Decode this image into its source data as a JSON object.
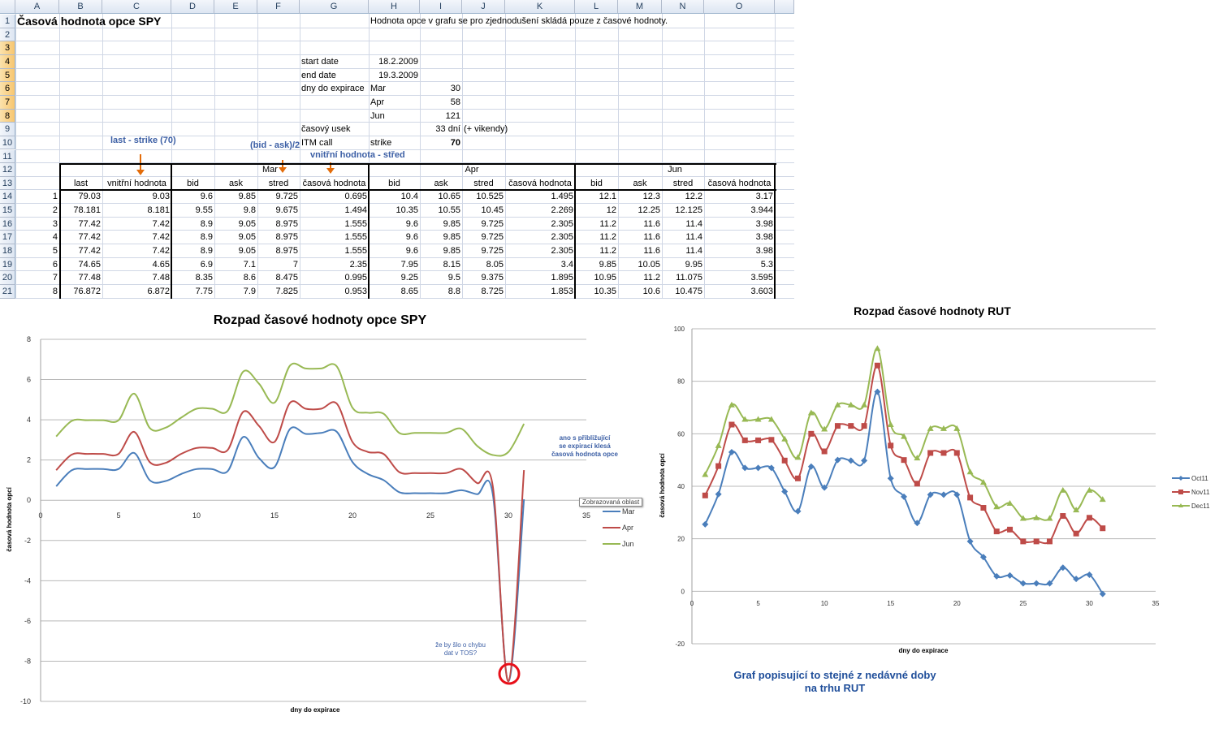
{
  "sheet": {
    "columns": [
      "A",
      "B",
      "C",
      "D",
      "E",
      "F",
      "G",
      "H",
      "I",
      "J",
      "K",
      "L",
      "M",
      "N",
      "O"
    ],
    "rows": [
      1,
      2,
      3,
      4,
      5,
      6,
      7,
      8,
      9,
      10,
      11,
      12,
      13,
      14,
      15,
      16,
      17,
      18,
      19,
      20,
      21
    ],
    "cells": [
      {
        "ref": "A1",
        "text": "Časová hodnota opce SPY"
      },
      {
        "ref": "H1",
        "text": "Hodnota opce v grafu se pro zjednodušení skládá pouze z časové hodnoty."
      },
      {
        "ref": "G4",
        "text": "start date"
      },
      {
        "ref": "H4",
        "text": "18.2.2009"
      },
      {
        "ref": "G5",
        "text": "end date"
      },
      {
        "ref": "H5",
        "text": "19.3.2009"
      },
      {
        "ref": "G6",
        "text": "dny do expirace"
      },
      {
        "ref": "H6",
        "text": "Mar"
      },
      {
        "ref": "I6",
        "text": "30"
      },
      {
        "ref": "H7",
        "text": "Apr"
      },
      {
        "ref": "I7",
        "text": "58"
      },
      {
        "ref": "H8",
        "text": "Jun"
      },
      {
        "ref": "I8",
        "text": "121"
      },
      {
        "ref": "G9",
        "text": "časový usek"
      },
      {
        "ref": "I9",
        "text": "33 dní"
      },
      {
        "ref": "J9",
        "text": "(+ vikendy)"
      },
      {
        "ref": "G10",
        "text": "ITM call"
      },
      {
        "ref": "H10",
        "text": "strike"
      },
      {
        "ref": "I10",
        "text": "70"
      }
    ],
    "group_headers": [
      {
        "label": "Mar",
        "from": "D",
        "to": "G"
      },
      {
        "label": "Apr",
        "from": "H",
        "to": "K"
      },
      {
        "label": "Jun",
        "from": "L",
        "to": "O"
      }
    ],
    "column_headers": [
      "last",
      "vnitřní hodnota",
      "bid",
      "ask",
      "stred",
      "časová hodnota",
      "bid",
      "ask",
      "stred",
      "časová hodnota",
      "bid",
      "ask",
      "stred",
      "časová hodnota"
    ],
    "table_rows": [
      [
        "1",
        "79.03",
        "9.03",
        "9.6",
        "9.85",
        "9.725",
        "0.695",
        "10.4",
        "10.65",
        "10.525",
        "1.495",
        "12.1",
        "12.3",
        "12.2",
        "3.17"
      ],
      [
        "2",
        "78.181",
        "8.181",
        "9.55",
        "9.8",
        "9.675",
        "1.494",
        "10.35",
        "10.55",
        "10.45",
        "2.269",
        "12",
        "12.25",
        "12.125",
        "3.944"
      ],
      [
        "3",
        "77.42",
        "7.42",
        "8.9",
        "9.05",
        "8.975",
        "1.555",
        "9.6",
        "9.85",
        "9.725",
        "2.305",
        "11.2",
        "11.6",
        "11.4",
        "3.98"
      ],
      [
        "4",
        "77.42",
        "7.42",
        "8.9",
        "9.05",
        "8.975",
        "1.555",
        "9.6",
        "9.85",
        "9.725",
        "2.305",
        "11.2",
        "11.6",
        "11.4",
        "3.98"
      ],
      [
        "5",
        "77.42",
        "7.42",
        "8.9",
        "9.05",
        "8.975",
        "1.555",
        "9.6",
        "9.85",
        "9.725",
        "2.305",
        "11.2",
        "11.6",
        "11.4",
        "3.98"
      ],
      [
        "6",
        "74.65",
        "4.65",
        "6.9",
        "7.1",
        "7",
        "2.35",
        "7.95",
        "8.15",
        "8.05",
        "3.4",
        "9.85",
        "10.05",
        "9.95",
        "5.3"
      ],
      [
        "7",
        "77.48",
        "7.48",
        "8.35",
        "8.6",
        "8.475",
        "0.995",
        "9.25",
        "9.5",
        "9.375",
        "1.895",
        "10.95",
        "11.2",
        "11.075",
        "3.595"
      ],
      [
        "8",
        "76.872",
        "6.872",
        "7.75",
        "7.9",
        "7.825",
        "0.953",
        "8.65",
        "8.8",
        "8.725",
        "1.853",
        "10.35",
        "10.6",
        "10.475",
        "3.603"
      ]
    ],
    "annotations": {
      "last_strike": "last - strike (70)",
      "bid_ask": "(bid - ask)/2",
      "intrinsic_mid": "vnitřní hodnota - střed"
    },
    "arrow_color": "#e36c0a"
  },
  "chart_data": [
    {
      "type": "line",
      "title": "Rozpad časové hodnoty opce SPY",
      "xlabel": "dny do expirace",
      "ylabel": "časová hodnota opcí",
      "xlim": [
        0,
        35
      ],
      "ylim": [
        -10,
        8
      ],
      "xticks": [
        0,
        5,
        10,
        15,
        20,
        25,
        30,
        35
      ],
      "yticks": [
        8,
        6,
        4,
        2,
        0,
        -2,
        -4,
        -6,
        -8,
        -10
      ],
      "grid": true,
      "smooth": true,
      "legend": "right",
      "x": [
        1,
        2,
        3,
        4,
        5,
        6,
        7,
        8,
        9,
        10,
        11,
        12,
        13,
        14,
        15,
        16,
        17,
        18,
        19,
        20,
        21,
        22,
        23,
        24,
        25,
        26,
        27,
        28,
        29,
        30,
        31
      ],
      "series": [
        {
          "name": "Mar",
          "color": "#4a7ebb",
          "values": [
            0.695,
            1.494,
            1.555,
            1.555,
            1.555,
            2.35,
            0.995,
            0.953,
            1.3,
            1.55,
            1.55,
            1.45,
            3.15,
            2.1,
            1.65,
            3.55,
            3.3,
            3.35,
            3.4,
            1.9,
            1.3,
            1.0,
            0.4,
            0.35,
            0.35,
            0.35,
            0.5,
            0.3,
            0.3,
            -9,
            0.05
          ]
        },
        {
          "name": "Apr",
          "color": "#be4b48",
          "values": [
            1.495,
            2.269,
            2.305,
            2.305,
            2.305,
            3.4,
            1.895,
            1.853,
            2.3,
            2.6,
            2.6,
            2.5,
            4.4,
            3.7,
            2.9,
            4.85,
            4.55,
            4.55,
            4.8,
            2.9,
            2.4,
            2.3,
            1.4,
            1.35,
            1.35,
            1.35,
            1.55,
            0.85,
            0.7,
            -9,
            1.5
          ]
        },
        {
          "name": "Jun",
          "color": "#98b954",
          "values": [
            3.17,
            3.944,
            3.98,
            3.98,
            3.98,
            5.3,
            3.595,
            3.603,
            4.1,
            4.55,
            4.55,
            4.45,
            6.4,
            5.8,
            4.85,
            6.7,
            6.55,
            6.55,
            6.65,
            4.6,
            4.35,
            4.3,
            3.35,
            3.35,
            3.35,
            3.35,
            3.55,
            2.7,
            2.25,
            2.4,
            3.8
          ]
        }
      ],
      "annotations": [
        "ano s přibližující se expirací klesá časová hodnota opce",
        "že by šlo o chybu dat v TOS?"
      ],
      "tooltip": "Zobrazovaná oblast"
    },
    {
      "type": "line",
      "title": "Rozpad časové hodnoty RUT",
      "xlabel": "dny do expirace",
      "ylabel": "časová hodnota opcí",
      "xlim": [
        0,
        35
      ],
      "ylim": [
        -20,
        100
      ],
      "xticks": [
        0,
        5,
        10,
        15,
        20,
        25,
        30,
        35
      ],
      "yticks": [
        100,
        80,
        60,
        40,
        20,
        0,
        -20
      ],
      "grid": true,
      "smooth": true,
      "legend": "right",
      "x": [
        1,
        2,
        3,
        4,
        5,
        6,
        7,
        8,
        9,
        10,
        11,
        12,
        13,
        14,
        15,
        16,
        17,
        18,
        19,
        20,
        21,
        22,
        23,
        24,
        25,
        26,
        27,
        28,
        29,
        30,
        31
      ],
      "series": [
        {
          "name": "Oct11",
          "color": "#4a7ebb",
          "marker": "diamond",
          "values": [
            25.5,
            37,
            53,
            47,
            47,
            47,
            38,
            30.5,
            47.5,
            39.5,
            50,
            49.8,
            49.8,
            76,
            43,
            36,
            26,
            36.8,
            36.8,
            36.8,
            19,
            13,
            5.7,
            6,
            3,
            3,
            3,
            9,
            4.7,
            6.3,
            -1
          ]
        },
        {
          "name": "Nov11",
          "color": "#be4b48",
          "marker": "square",
          "values": [
            36.5,
            47.7,
            63.5,
            57.5,
            57.5,
            57.7,
            49.8,
            43,
            60,
            53.3,
            63,
            63,
            63,
            86,
            55.5,
            50,
            41,
            52.7,
            52.7,
            52.7,
            35.7,
            31.8,
            22.8,
            23.5,
            19,
            19,
            19,
            28.7,
            22,
            28,
            24
          ]
        },
        {
          "name": "Dec11",
          "color": "#98b954",
          "marker": "triangle",
          "values": [
            44.5,
            55.5,
            71,
            65.5,
            65.5,
            65.5,
            58,
            51,
            68,
            61.8,
            71,
            71,
            71,
            92.5,
            63.5,
            59,
            50.8,
            62,
            62,
            62,
            45.5,
            41.5,
            32.2,
            33.5,
            27.8,
            28,
            27.8,
            38.5,
            31,
            38.5,
            35
          ]
        }
      ],
      "caption": [
        "Graf popisující to stejné z nedávné doby",
        "na trhu RUT"
      ]
    }
  ]
}
